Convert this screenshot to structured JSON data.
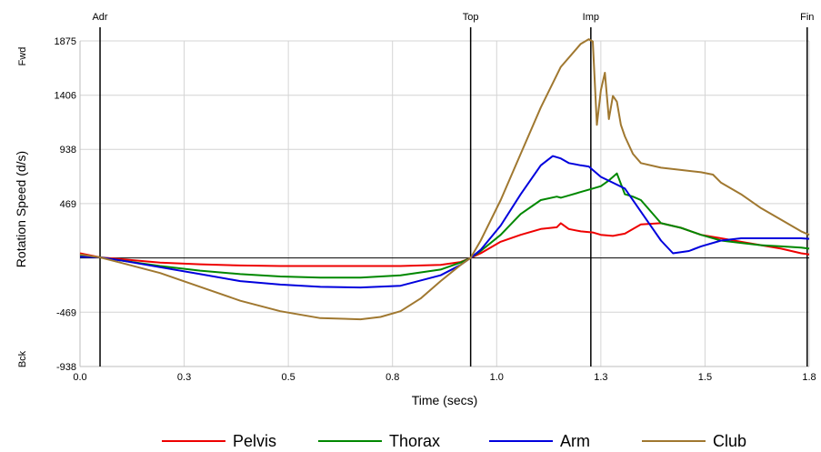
{
  "chart_data": {
    "type": "line",
    "xlabel": "Time (secs)",
    "ylabel": "Rotation Speed (d/s)",
    "xlim": [
      0.0,
      1.82
    ],
    "ylim": [
      -938,
      1875
    ],
    "x_ticks": [
      "0.0",
      "0.3",
      "0.5",
      "0.8",
      "1.0",
      "1.3",
      "1.5",
      "1.8"
    ],
    "x_tick_values": [
      0.0,
      0.26,
      0.52,
      0.78,
      1.04,
      1.3,
      1.56,
      1.82
    ],
    "y_ticks": [
      "1875",
      "1406",
      "938",
      "469",
      "-469",
      "-938"
    ],
    "y_tick_values": [
      1875,
      1406,
      938,
      469,
      -469,
      -938
    ],
    "y_side_labels": {
      "top": "Fwd",
      "bottom": "Bck"
    },
    "phases": [
      {
        "label": "Adr",
        "x": 0.05
      },
      {
        "label": "Top",
        "x": 0.975
      },
      {
        "label": "Imp",
        "x": 1.275
      },
      {
        "label": "Fin",
        "x": 1.815
      }
    ],
    "grid": true,
    "legend_position": "bottom",
    "series": [
      {
        "name": "Pelvis",
        "color": "#ee0000",
        "x": [
          0.0,
          0.05,
          0.1,
          0.2,
          0.3,
          0.4,
          0.5,
          0.6,
          0.7,
          0.8,
          0.9,
          0.95,
          0.975,
          1.0,
          1.05,
          1.1,
          1.15,
          1.19,
          1.2,
          1.22,
          1.25,
          1.28,
          1.3,
          1.33,
          1.36,
          1.4,
          1.45,
          1.5,
          1.55,
          1.6,
          1.65,
          1.7,
          1.75,
          1.8,
          1.82
        ],
        "values": [
          40,
          5,
          -10,
          -40,
          -55,
          -65,
          -70,
          -70,
          -70,
          -70,
          -60,
          -35,
          0,
          40,
          140,
          200,
          250,
          265,
          300,
          250,
          230,
          220,
          200,
          190,
          210,
          290,
          300,
          260,
          200,
          170,
          140,
          110,
          80,
          40,
          30
        ]
      },
      {
        "name": "Thorax",
        "color": "#008800",
        "x": [
          0.0,
          0.05,
          0.1,
          0.2,
          0.3,
          0.4,
          0.5,
          0.6,
          0.7,
          0.8,
          0.9,
          0.95,
          0.975,
          1.0,
          1.05,
          1.1,
          1.15,
          1.19,
          1.2,
          1.22,
          1.25,
          1.28,
          1.3,
          1.32,
          1.34,
          1.36,
          1.38,
          1.4,
          1.45,
          1.5,
          1.55,
          1.6,
          1.65,
          1.7,
          1.75,
          1.8,
          1.82
        ],
        "values": [
          20,
          5,
          -20,
          -70,
          -110,
          -140,
          -160,
          -170,
          -170,
          -150,
          -100,
          -40,
          0,
          60,
          200,
          380,
          500,
          530,
          520,
          540,
          570,
          600,
          620,
          670,
          730,
          550,
          530,
          500,
          300,
          260,
          200,
          150,
          130,
          110,
          100,
          90,
          80
        ]
      },
      {
        "name": "Arm",
        "color": "#0000dd",
        "x": [
          0.0,
          0.05,
          0.1,
          0.2,
          0.3,
          0.4,
          0.5,
          0.6,
          0.7,
          0.8,
          0.9,
          0.95,
          0.975,
          1.0,
          1.05,
          1.1,
          1.15,
          1.18,
          1.2,
          1.22,
          1.25,
          1.27,
          1.3,
          1.33,
          1.36,
          1.4,
          1.45,
          1.48,
          1.52,
          1.55,
          1.6,
          1.65,
          1.7,
          1.75,
          1.8,
          1.82
        ],
        "values": [
          10,
          5,
          -20,
          -80,
          -140,
          -200,
          -230,
          -250,
          -255,
          -240,
          -150,
          -60,
          0,
          70,
          280,
          550,
          800,
          880,
          860,
          820,
          800,
          790,
          700,
          650,
          600,
          400,
          150,
          40,
          60,
          100,
          150,
          170,
          170,
          170,
          170,
          165
        ]
      },
      {
        "name": "Club",
        "color": "#a07830",
        "x": [
          0.0,
          0.05,
          0.1,
          0.2,
          0.3,
          0.4,
          0.5,
          0.6,
          0.7,
          0.75,
          0.8,
          0.85,
          0.9,
          0.95,
          0.975,
          1.0,
          1.05,
          1.1,
          1.15,
          1.2,
          1.25,
          1.27,
          1.28,
          1.29,
          1.3,
          1.31,
          1.32,
          1.33,
          1.34,
          1.35,
          1.36,
          1.38,
          1.4,
          1.45,
          1.5,
          1.55,
          1.58,
          1.6,
          1.65,
          1.7,
          1.75,
          1.8,
          1.82
        ],
        "values": [
          30,
          5,
          -40,
          -130,
          -250,
          -370,
          -460,
          -520,
          -530,
          -510,
          -460,
          -350,
          -200,
          -60,
          0,
          150,
          500,
          900,
          1300,
          1650,
          1850,
          1890,
          1870,
          1150,
          1450,
          1600,
          1200,
          1400,
          1350,
          1150,
          1050,
          900,
          820,
          780,
          760,
          740,
          720,
          650,
          550,
          430,
          330,
          230,
          200
        ]
      }
    ]
  }
}
